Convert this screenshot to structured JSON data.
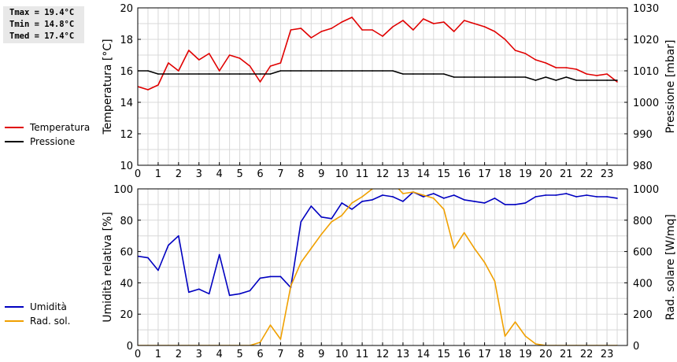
{
  "stats": {
    "tmax": "Tmax = 19.4°C",
    "tmin": "Tmin = 14.8°C",
    "tmed": "Tmed = 17.4°C"
  },
  "colors": {
    "temperature": "#e00000",
    "pressure": "#000000",
    "humidity": "#0000c0",
    "radiation": "#f0a000",
    "grid": "#d8d8d8"
  },
  "chart_data": [
    {
      "type": "line",
      "x_ticks": [
        "0",
        "1",
        "2",
        "3",
        "4",
        "5",
        "6",
        "7",
        "8",
        "9",
        "10",
        "11",
        "12",
        "13",
        "14",
        "15",
        "16",
        "17",
        "18",
        "19",
        "20",
        "21",
        "22",
        "23"
      ],
      "xlim": [
        0,
        24
      ],
      "ylabel_left": "Temperatura [°C]",
      "ylabel_right": "Pressione [mbar]",
      "ylim_left": [
        10,
        20
      ],
      "ylim_right": [
        980,
        1030
      ],
      "yticks_left": [
        "10",
        "12",
        "14",
        "16",
        "18",
        "20"
      ],
      "yticks_right": [
        "980",
        "990",
        "1000",
        "1010",
        "1020",
        "1030"
      ],
      "grid": true,
      "legend_position": "left",
      "series": [
        {
          "name": "Temperatura",
          "axis": "left",
          "x": [
            0,
            0.5,
            1,
            1.5,
            2,
            2.5,
            3,
            3.5,
            4,
            4.5,
            5,
            5.5,
            6,
            6.5,
            7,
            7.5,
            8,
            8.5,
            9,
            9.5,
            10,
            10.5,
            11,
            11.5,
            12,
            12.5,
            13,
            13.5,
            14,
            14.5,
            15,
            15.5,
            16,
            16.5,
            17,
            17.5,
            18,
            18.5,
            19,
            19.5,
            20,
            20.5,
            21,
            21.5,
            22,
            22.5,
            23,
            23.5
          ],
          "values": [
            15.0,
            14.8,
            15.1,
            16.5,
            16.0,
            17.3,
            16.7,
            17.1,
            16.0,
            17.0,
            16.8,
            16.3,
            15.3,
            16.3,
            16.5,
            18.6,
            18.7,
            18.1,
            18.5,
            18.7,
            19.1,
            19.4,
            18.6,
            18.6,
            18.2,
            18.8,
            19.2,
            18.6,
            19.3,
            19.0,
            19.1,
            18.5,
            19.2,
            19.0,
            18.8,
            18.5,
            18.0,
            17.3,
            17.1,
            16.7,
            16.5,
            16.2,
            16.2,
            16.1,
            15.8,
            15.7,
            15.8,
            15.3
          ]
        },
        {
          "name": "Pressione",
          "axis": "right",
          "x": [
            0,
            0.5,
            1,
            1.5,
            2,
            2.5,
            3,
            3.5,
            4,
            4.5,
            5,
            5.5,
            6,
            6.5,
            7,
            7.5,
            8,
            8.5,
            9,
            9.5,
            10,
            10.5,
            11,
            11.5,
            12,
            12.5,
            13,
            13.5,
            14,
            14.5,
            15,
            15.5,
            16,
            16.5,
            17,
            17.5,
            18,
            18.5,
            19,
            19.5,
            20,
            20.5,
            21,
            21.5,
            22,
            22.5,
            23,
            23.5
          ],
          "values": [
            1010,
            1010,
            1009,
            1009,
            1009,
            1009,
            1009,
            1009,
            1009,
            1009,
            1009,
            1009,
            1009,
            1009,
            1010,
            1010,
            1010,
            1010,
            1010,
            1010,
            1010,
            1010,
            1010,
            1010,
            1010,
            1010,
            1009,
            1009,
            1009,
            1009,
            1009,
            1008,
            1008,
            1008,
            1008,
            1008,
            1008,
            1008,
            1008,
            1007,
            1008,
            1007,
            1008,
            1007,
            1007,
            1007,
            1007,
            1007
          ]
        }
      ]
    },
    {
      "type": "line",
      "x_ticks": [
        "0",
        "1",
        "2",
        "3",
        "4",
        "5",
        "6",
        "7",
        "8",
        "9",
        "10",
        "11",
        "12",
        "13",
        "14",
        "15",
        "16",
        "17",
        "18",
        "19",
        "20",
        "21",
        "22",
        "23"
      ],
      "xlim": [
        0,
        24
      ],
      "ylabel_left": "Umidità relativa [%]",
      "ylabel_right": "Rad. solare [W/mq]",
      "ylim_left": [
        0,
        100
      ],
      "ylim_right": [
        0,
        1000
      ],
      "yticks_left": [
        "0",
        "20",
        "40",
        "60",
        "80",
        "100"
      ],
      "yticks_right": [
        "0",
        "200",
        "400",
        "600",
        "800",
        "1000"
      ],
      "grid": true,
      "legend_position": "left",
      "series": [
        {
          "name": "Umidità",
          "axis": "left",
          "x": [
            0,
            0.5,
            1,
            1.5,
            2,
            2.5,
            3,
            3.5,
            4,
            4.5,
            5,
            5.5,
            6,
            6.5,
            7,
            7.5,
            8,
            8.5,
            9,
            9.5,
            10,
            10.5,
            11,
            11.5,
            12,
            12.5,
            13,
            13.5,
            14,
            14.5,
            15,
            15.5,
            16,
            16.5,
            17,
            17.5,
            18,
            18.5,
            19,
            19.5,
            20,
            20.5,
            21,
            21.5,
            22,
            22.5,
            23,
            23.5
          ],
          "values": [
            57,
            56,
            48,
            64,
            70,
            34,
            36,
            33,
            58,
            32,
            33,
            35,
            43,
            44,
            44,
            37,
            79,
            89,
            82,
            81,
            91,
            87,
            92,
            93,
            96,
            95,
            92,
            98,
            95,
            97,
            94,
            96,
            93,
            92,
            91,
            94,
            90,
            90,
            91,
            95,
            96,
            96,
            97,
            95,
            96,
            95,
            95,
            94
          ]
        },
        {
          "name": "Rad. sol.",
          "axis": "right",
          "x": [
            0,
            0.5,
            1,
            1.5,
            2,
            2.5,
            3,
            3.5,
            4,
            4.5,
            5,
            5.5,
            6,
            6.5,
            7,
            7.5,
            8,
            8.5,
            9,
            9.5,
            10,
            10.5,
            11,
            11.5,
            12,
            12.5,
            13,
            13.5,
            14,
            14.5,
            15,
            15.5,
            16,
            16.5,
            17,
            17.5,
            18,
            18.5,
            19,
            19.5,
            20,
            20.5,
            21,
            21.5,
            22,
            22.5,
            23,
            23.5
          ],
          "values": [
            0,
            0,
            0,
            0,
            0,
            0,
            0,
            0,
            0,
            0,
            0,
            0,
            20,
            130,
            40,
            380,
            530,
            620,
            710,
            790,
            830,
            910,
            950,
            1000,
            1050,
            1040,
            970,
            980,
            960,
            940,
            870,
            620,
            720,
            620,
            530,
            410,
            60,
            150,
            60,
            10,
            0,
            0,
            0,
            0,
            0,
            0,
            0,
            0
          ]
        }
      ]
    }
  ]
}
